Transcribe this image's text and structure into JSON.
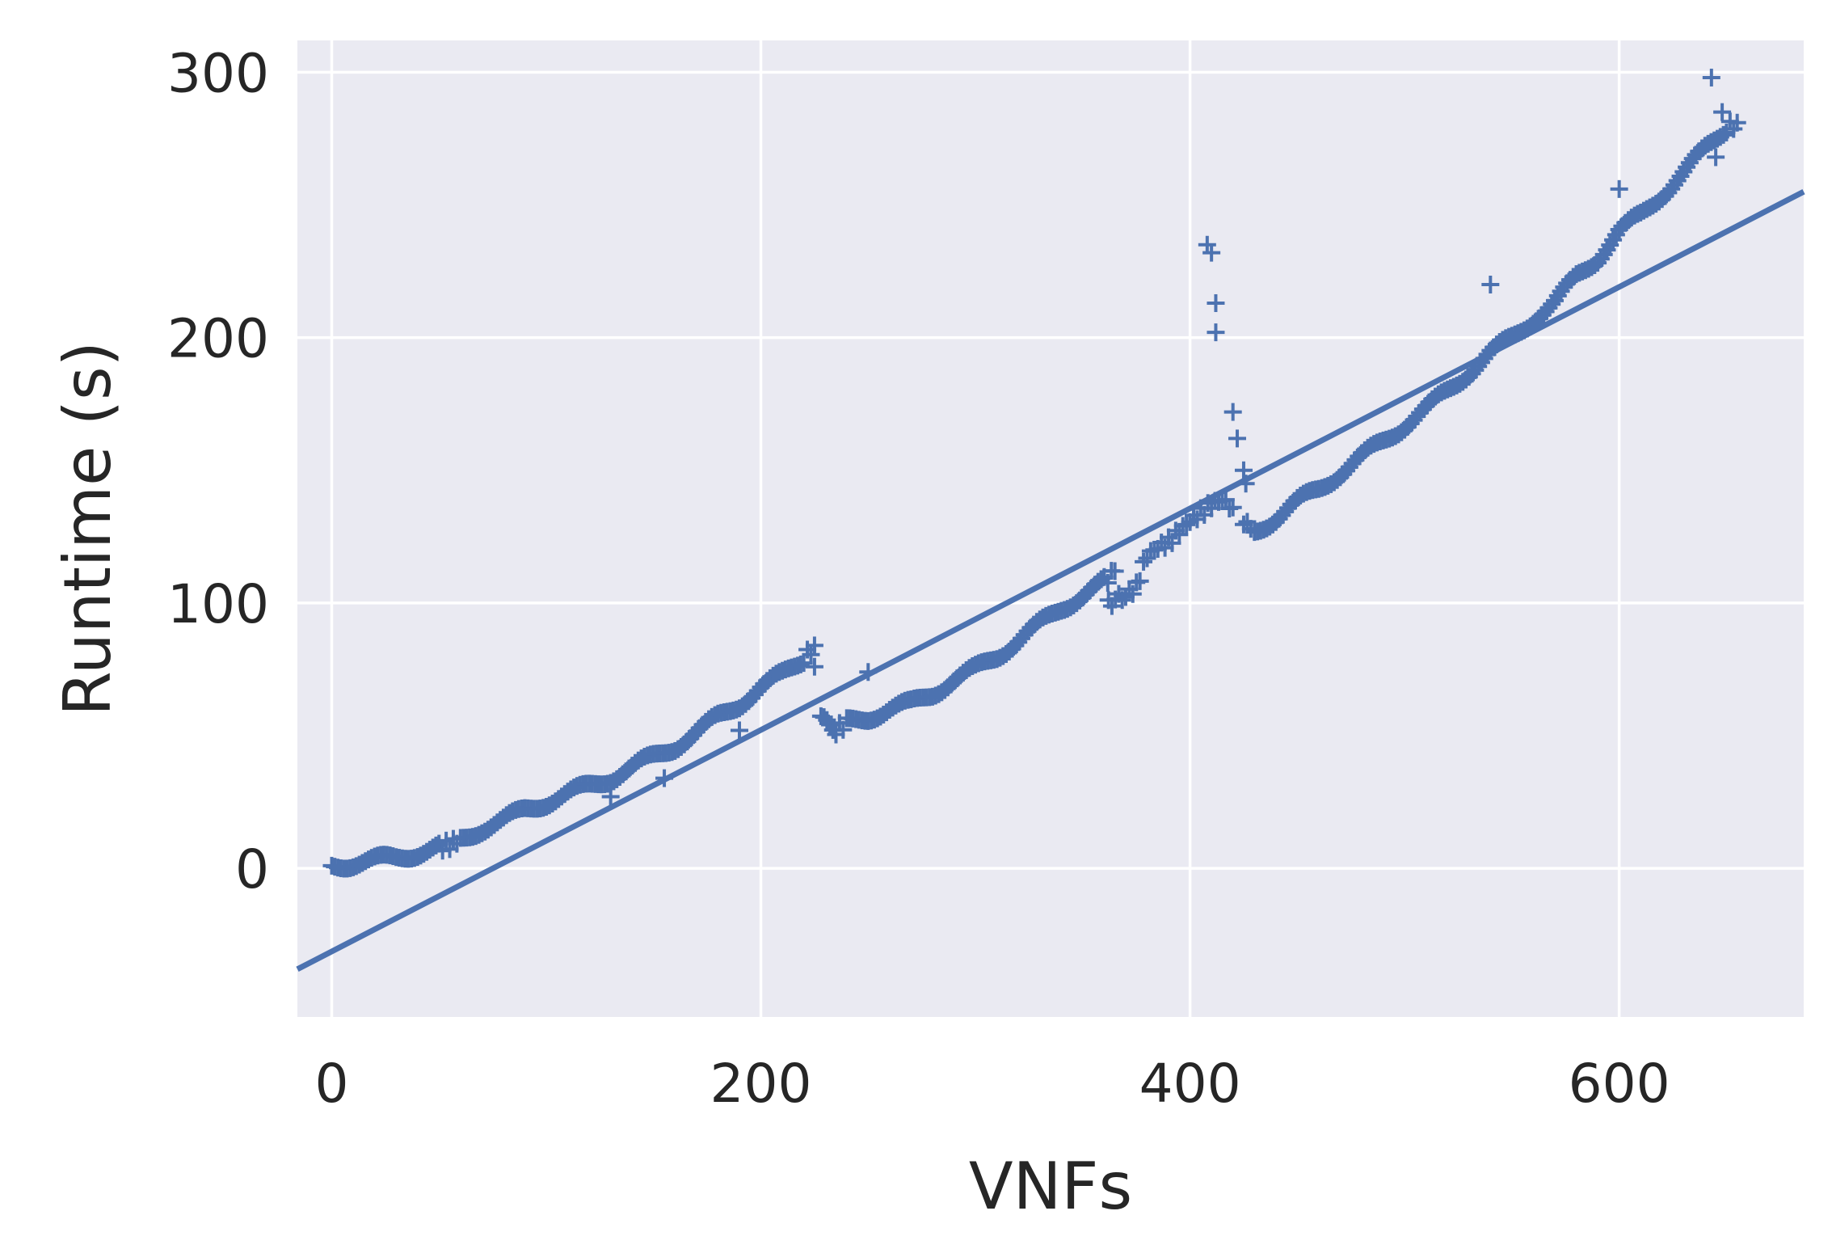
{
  "chart_data": {
    "type": "scatter",
    "title": "",
    "xlabel": "VNFs",
    "ylabel": "Runtime (s)",
    "xlim": [
      -16,
      686
    ],
    "ylim": [
      -56,
      312
    ],
    "xticks": [
      0,
      200,
      400,
      600
    ],
    "yticks": [
      0,
      100,
      200,
      300
    ],
    "grid": true,
    "marker": "+",
    "color": "#4c72b0",
    "background": "#eaeaf2",
    "series": [
      {
        "kind": "scatter",
        "segments": [
          {
            "x": [
              0,
              10,
              20,
              30,
              40,
              50,
              55,
              60,
              70,
              80,
              90,
              100,
              110,
              120,
              130,
              140,
              150,
              160,
              170,
              180,
              190,
              200,
              210,
              220,
              225
            ],
            "y": [
              1,
              2,
              3,
              4,
              6,
              8,
              9,
              11,
              15,
              18,
              22,
              25,
              28,
              31,
              34,
              38,
              42,
              46,
              51,
              57,
              62,
              68,
              73,
              79,
              84
            ]
          },
          {
            "x": [
              228,
              235,
              240,
              250,
              260,
              270,
              280,
              290,
              300,
              310,
              320,
              330,
              340,
              350,
              360,
              365
            ],
            "y": [
              56,
              52,
              55,
              57,
              60,
              62,
              66,
              71,
              75,
              80,
              86,
              92,
              98,
              103,
              108,
              112
            ]
          },
          {
            "x": [
              362,
              370,
              375,
              380,
              385,
              390,
              395,
              400,
              405,
              410,
              415,
              420
            ],
            "y": [
              100,
              103,
              106,
              118,
              121,
              123,
              127,
              131,
              134,
              137,
              139,
              136
            ]
          },
          {
            "x": [
              425,
              430,
              440,
              450,
              460,
              470,
              480,
              490,
              500,
              510,
              520,
              530,
              540,
              550,
              560,
              570,
              580,
              590,
              600,
              610,
              620,
              630,
              640,
              650,
              655
            ],
            "y": [
              131,
              127,
              132,
              138,
              143,
              149,
              155,
              161,
              167,
              173,
              180,
              187,
              194,
              200,
              207,
              213,
              223,
              230,
              240,
              246,
              254,
              262,
              271,
              279,
              281
            ]
          }
        ],
        "outliers": {
          "x": [
            408,
            410,
            412,
            412,
            420,
            422,
            425,
            426,
            250,
            225,
            190,
            155,
            130,
            540,
            600,
            643,
            645,
            648
          ],
          "y": [
            235,
            232,
            213,
            202,
            172,
            162,
            150,
            145,
            74,
            76,
            52,
            34,
            27,
            220,
            256,
            298,
            268,
            285
          ]
        }
      },
      {
        "kind": "regression-line",
        "x": [
          -16,
          686
        ],
        "y": [
          -38,
          255
        ]
      }
    ]
  }
}
